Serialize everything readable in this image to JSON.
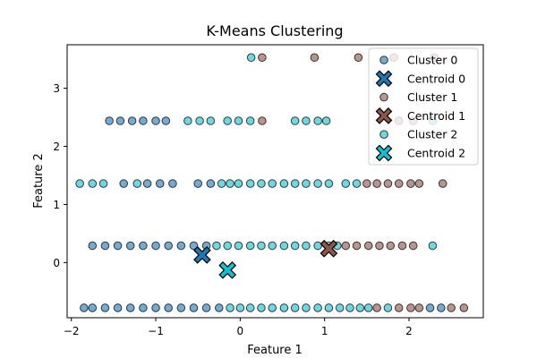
{
  "chart_data": {
    "type": "scatter",
    "title": "K-Means Clustering",
    "xlabel": "Feature 1",
    "ylabel": "Feature 2",
    "xlim": [
      -2.05,
      2.88
    ],
    "ylim": [
      -0.95,
      3.75
    ],
    "xticks": [
      -2,
      -1,
      0,
      1,
      2
    ],
    "yticks": [
      0,
      1,
      2,
      3
    ],
    "grid": false,
    "legend_position": "top-right",
    "colors": {
      "cluster0": "#1f77b4",
      "cluster1": "#8c564b",
      "cluster2": "#17becf"
    },
    "series": [
      {
        "name": "Cluster 0",
        "marker": "circle",
        "points": [
          [
            -1.55,
            2.44
          ],
          [
            -1.42,
            2.44
          ],
          [
            -1.28,
            2.44
          ],
          [
            -1.15,
            2.44
          ],
          [
            -1.0,
            2.44
          ],
          [
            -0.88,
            2.44
          ],
          [
            -1.38,
            1.36
          ],
          [
            -1.1,
            1.36
          ],
          [
            -0.95,
            1.36
          ],
          [
            -0.8,
            1.36
          ],
          [
            -0.5,
            1.36
          ],
          [
            -0.35,
            1.36
          ],
          [
            -1.75,
            0.29
          ],
          [
            -1.6,
            0.29
          ],
          [
            -1.45,
            0.29
          ],
          [
            -1.3,
            0.29
          ],
          [
            -1.15,
            0.29
          ],
          [
            -1.0,
            0.29
          ],
          [
            -0.85,
            0.29
          ],
          [
            -0.7,
            0.29
          ],
          [
            -0.55,
            0.29
          ],
          [
            -0.4,
            0.29
          ],
          [
            -1.85,
            -0.78
          ],
          [
            -1.75,
            -0.78
          ],
          [
            -1.6,
            -0.78
          ],
          [
            -1.45,
            -0.78
          ],
          [
            -1.3,
            -0.78
          ],
          [
            -1.15,
            -0.78
          ],
          [
            -1.0,
            -0.78
          ],
          [
            -0.85,
            -0.78
          ],
          [
            -0.7,
            -0.78
          ],
          [
            -0.55,
            -0.78
          ],
          [
            -0.4,
            -0.78
          ],
          [
            -0.25,
            -0.78
          ],
          [
            2.25,
            -0.78
          ],
          [
            2.38,
            -0.78
          ]
        ]
      },
      {
        "name": "Cluster 1",
        "marker": "circle",
        "points": [
          [
            0.26,
            3.53
          ],
          [
            0.88,
            3.53
          ],
          [
            1.4,
            3.53
          ],
          [
            1.82,
            3.53
          ],
          [
            2.3,
            3.53
          ],
          [
            0.26,
            2.44
          ],
          [
            1.88,
            2.44
          ],
          [
            2.05,
            2.44
          ],
          [
            1.5,
            1.36
          ],
          [
            1.62,
            1.36
          ],
          [
            1.75,
            1.36
          ],
          [
            1.88,
            1.36
          ],
          [
            2.02,
            1.36
          ],
          [
            2.12,
            1.36
          ],
          [
            2.4,
            1.36
          ],
          [
            1.25,
            0.29
          ],
          [
            1.38,
            0.29
          ],
          [
            1.52,
            0.29
          ],
          [
            1.65,
            0.29
          ],
          [
            1.78,
            0.29
          ],
          [
            1.92,
            0.29
          ],
          [
            2.05,
            0.29
          ],
          [
            1.62,
            -0.78
          ],
          [
            1.88,
            -0.78
          ],
          [
            2.02,
            -0.78
          ],
          [
            2.12,
            -0.78
          ],
          [
            2.5,
            -0.78
          ],
          [
            2.65,
            -0.78
          ]
        ]
      },
      {
        "name": "Cluster 2",
        "marker": "circle",
        "points": [
          [
            0.13,
            3.53
          ],
          [
            -0.62,
            2.44
          ],
          [
            -0.48,
            2.44
          ],
          [
            -0.35,
            2.44
          ],
          [
            -0.15,
            2.44
          ],
          [
            -0.02,
            2.44
          ],
          [
            0.12,
            2.44
          ],
          [
            0.65,
            2.44
          ],
          [
            0.78,
            2.44
          ],
          [
            0.92,
            2.44
          ],
          [
            1.02,
            2.44
          ],
          [
            2.28,
            2.44
          ],
          [
            -1.9,
            1.36
          ],
          [
            -1.75,
            1.36
          ],
          [
            -1.62,
            1.36
          ],
          [
            -1.22,
            1.36
          ],
          [
            -0.22,
            1.36
          ],
          [
            -0.12,
            1.36
          ],
          [
            -0.02,
            1.36
          ],
          [
            0.12,
            1.36
          ],
          [
            0.25,
            1.36
          ],
          [
            0.38,
            1.36
          ],
          [
            0.52,
            1.36
          ],
          [
            0.65,
            1.36
          ],
          [
            0.78,
            1.36
          ],
          [
            0.92,
            1.36
          ],
          [
            1.05,
            1.36
          ],
          [
            1.25,
            1.36
          ],
          [
            1.38,
            1.36
          ],
          [
            -0.28,
            0.29
          ],
          [
            -0.15,
            0.29
          ],
          [
            -0.02,
            0.29
          ],
          [
            0.12,
            0.29
          ],
          [
            0.25,
            0.29
          ],
          [
            0.38,
            0.29
          ],
          [
            0.52,
            0.29
          ],
          [
            0.65,
            0.29
          ],
          [
            0.78,
            0.29
          ],
          [
            0.92,
            0.29
          ],
          [
            1.05,
            0.29
          ],
          [
            1.15,
            0.29
          ],
          [
            2.28,
            0.29
          ],
          [
            -0.12,
            -0.78
          ],
          [
            0.0,
            -0.78
          ],
          [
            0.12,
            -0.78
          ],
          [
            0.25,
            -0.78
          ],
          [
            0.38,
            -0.78
          ],
          [
            0.52,
            -0.78
          ],
          [
            0.65,
            -0.78
          ],
          [
            0.78,
            -0.78
          ],
          [
            0.92,
            -0.78
          ],
          [
            1.05,
            -0.78
          ],
          [
            1.18,
            -0.78
          ],
          [
            1.3,
            -0.78
          ],
          [
            1.42,
            -0.78
          ],
          [
            1.52,
            -0.78
          ],
          [
            1.75,
            -0.78
          ]
        ]
      }
    ],
    "centroids": [
      {
        "name": "Centroid 0",
        "marker": "x",
        "x": -0.45,
        "y": 0.13
      },
      {
        "name": "Centroid 1",
        "marker": "x",
        "x": 1.05,
        "y": 0.24
      },
      {
        "name": "Centroid 2",
        "marker": "x",
        "x": -0.15,
        "y": -0.13
      }
    ],
    "legend": [
      "Cluster 0",
      "Centroid 0",
      "Cluster 1",
      "Centroid 1",
      "Cluster 2",
      "Centroid 2"
    ]
  }
}
